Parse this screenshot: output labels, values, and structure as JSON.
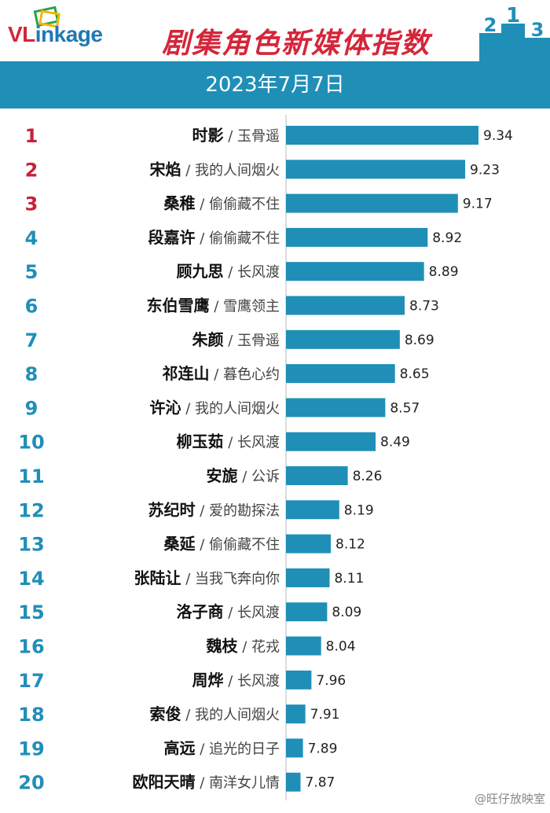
{
  "brand": {
    "logo_text_red": "VL",
    "logo_text_blue": "inkage"
  },
  "page_title": "剧集角色新媒体指数",
  "date_text": "2023年7月7日",
  "podium_digits": [
    "2",
    "1",
    "3"
  ],
  "watermark": "@旺仔放映室",
  "colors": {
    "bar": "#1f8fb8",
    "top_rank": "#c8213a",
    "rank": "#1f8fb8",
    "title": "#d4263a"
  },
  "chart_data": {
    "type": "bar",
    "orientation": "horizontal",
    "title": "剧集角色新媒体指数",
    "subtitle": "2023年7月7日",
    "xlim": [
      7.75,
      9.4
    ],
    "grid": false,
    "rows": [
      {
        "rank": "1",
        "role": "时影",
        "drama": "玉骨遥",
        "value": 9.34
      },
      {
        "rank": "2",
        "role": "宋焰",
        "drama": "我的人间烟火",
        "value": 9.23
      },
      {
        "rank": "3",
        "role": "桑稚",
        "drama": "偷偷藏不住",
        "value": 9.17
      },
      {
        "rank": "4",
        "role": "段嘉许",
        "drama": "偷偷藏不住",
        "value": 8.92
      },
      {
        "rank": "5",
        "role": "顾九思",
        "drama": "长风渡",
        "value": 8.89
      },
      {
        "rank": "6",
        "role": "东伯雪鹰",
        "drama": "雪鹰领主",
        "value": 8.73
      },
      {
        "rank": "7",
        "role": "朱颜",
        "drama": "玉骨遥",
        "value": 8.69
      },
      {
        "rank": "8",
        "role": "祁连山",
        "drama": "暮色心约",
        "value": 8.65
      },
      {
        "rank": "9",
        "role": "许沁",
        "drama": "我的人间烟火",
        "value": 8.57
      },
      {
        "rank": "10",
        "role": "柳玉茹",
        "drama": "长风渡",
        "value": 8.49
      },
      {
        "rank": "11",
        "role": "安旎",
        "drama": "公诉",
        "value": 8.26
      },
      {
        "rank": "12",
        "role": "苏纪时",
        "drama": "爱的勘探法",
        "value": 8.19
      },
      {
        "rank": "13",
        "role": "桑延",
        "drama": "偷偷藏不住",
        "value": 8.12
      },
      {
        "rank": "14",
        "role": "张陆让",
        "drama": "当我飞奔向你",
        "value": 8.11
      },
      {
        "rank": "15",
        "role": "洛子商",
        "drama": "长风渡",
        "value": 8.09
      },
      {
        "rank": "16",
        "role": "魏枝",
        "drama": "花戎",
        "value": 8.04
      },
      {
        "rank": "17",
        "role": "周烨",
        "drama": "长风渡",
        "value": 7.96
      },
      {
        "rank": "18",
        "role": "索俊",
        "drama": "我的人间烟火",
        "value": 7.91
      },
      {
        "rank": "19",
        "role": "高远",
        "drama": "追光的日子",
        "value": 7.89
      },
      {
        "rank": "20",
        "role": "欧阳天晴",
        "drama": "南洋女儿情",
        "value": 7.87
      }
    ]
  }
}
